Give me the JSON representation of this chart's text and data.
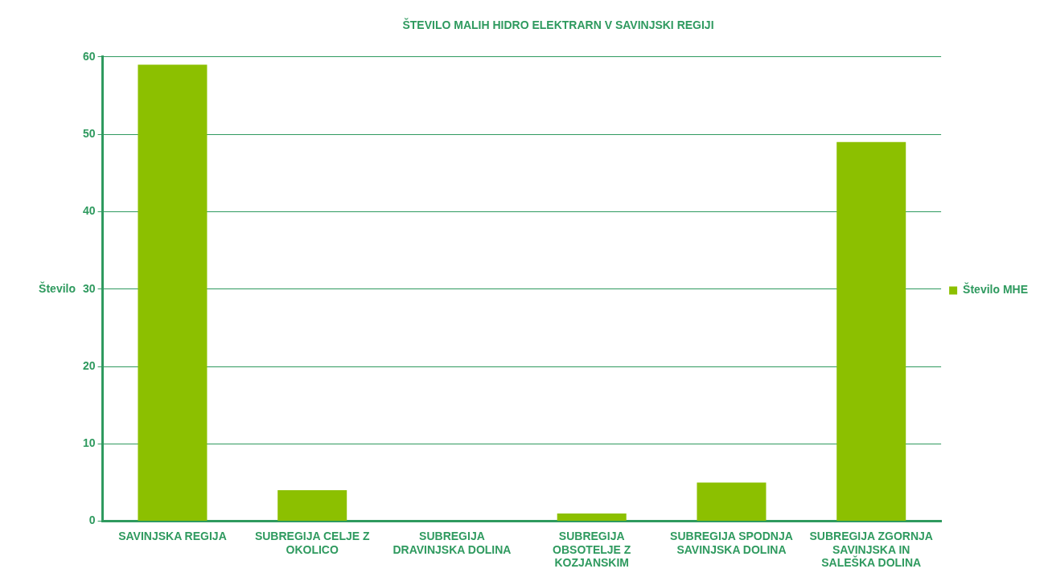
{
  "chart_data": {
    "type": "bar",
    "title": "ŠTEVILO MALIH HIDRO ELEKTRARN V SAVINJSKI REGIJI",
    "ylabel": "Število",
    "categories": [
      "SAVINJSKA REGIJA",
      "SUBREGIJA CELJE Z OKOLICO",
      "SUBREGIJA DRAVINJSKA DOLINA",
      "SUBREGIJA OBSOTELJE Z KOZJANSKIM",
      "SUBREGIJA SPODNJA SAVINJSKA DOLINA",
      "SUBREGIJA ZGORNJA SAVINJSKA IN SALEŠKA DOLINA"
    ],
    "series": [
      {
        "name": "Število MHE",
        "color": "#8cc000",
        "values": [
          59,
          4,
          0,
          1,
          5,
          49
        ]
      }
    ],
    "ylim": [
      0,
      60
    ],
    "yticks": [
      0,
      10,
      20,
      30,
      40,
      50,
      60
    ],
    "grid": "y",
    "legend": "right"
  }
}
